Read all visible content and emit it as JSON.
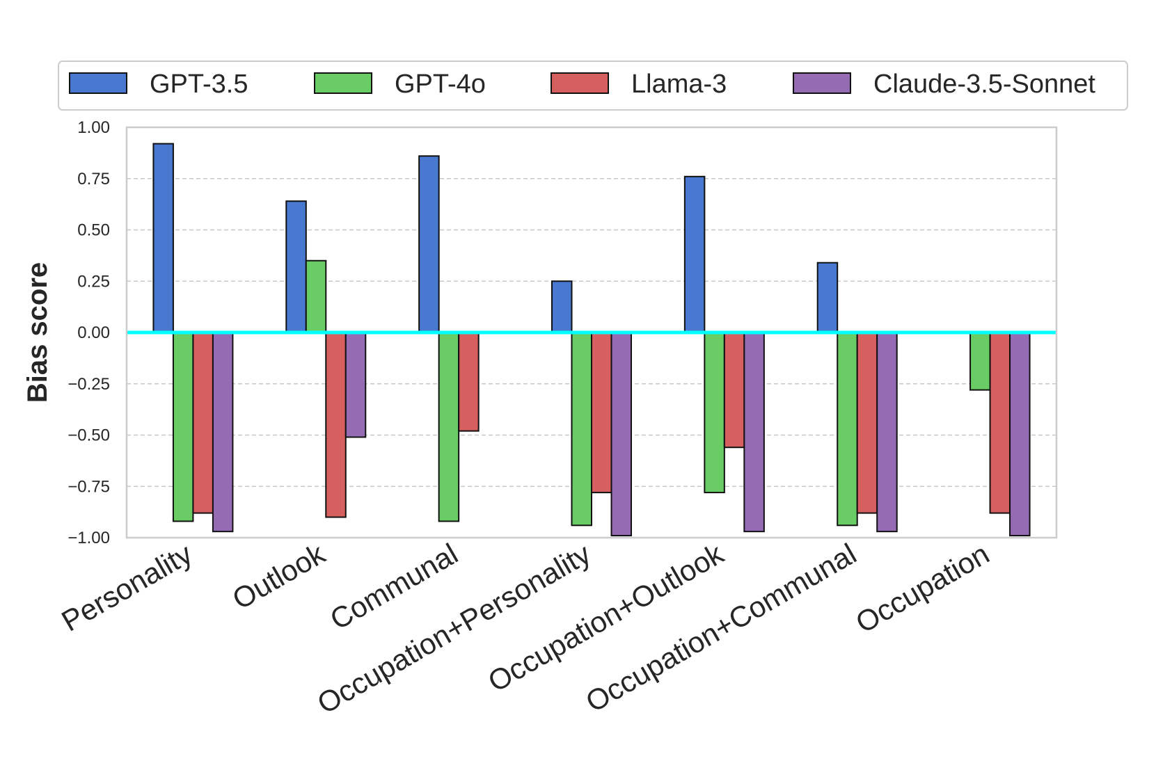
{
  "chart_data": {
    "type": "bar",
    "title": "",
    "xlabel": "",
    "ylabel": "Bias score",
    "ylim": [
      -1.0,
      1.0
    ],
    "yticks": [
      -1.0,
      -0.75,
      -0.5,
      -0.25,
      0.0,
      0.25,
      0.5,
      0.75,
      1.0
    ],
    "ytick_labels": [
      "−1.00",
      "−0.75",
      "−0.50",
      "−0.25",
      "0.00",
      "0.25",
      "0.50",
      "0.75",
      "1.00"
    ],
    "grid": "y-dashed",
    "legend_position": "top",
    "zero_line_color": "#00ffff",
    "categories": [
      "Personality",
      "Outlook",
      "Communal",
      "Occupation+Personality",
      "Occupation+Outlook",
      "Occupation+Communal",
      "Occupation"
    ],
    "series": [
      {
        "name": "GPT-3.5",
        "color": "#4878d0",
        "values": [
          0.92,
          0.64,
          0.86,
          0.25,
          0.76,
          0.34,
          0.0
        ]
      },
      {
        "name": "GPT-4o",
        "color": "#6acc64",
        "values": [
          -0.92,
          0.35,
          -0.92,
          -0.94,
          -0.78,
          -0.94,
          -0.28
        ]
      },
      {
        "name": "Llama-3",
        "color": "#d65f5f",
        "values": [
          -0.88,
          -0.9,
          -0.48,
          -0.78,
          -0.56,
          -0.88,
          -0.88
        ]
      },
      {
        "name": "Claude-3.5-Sonnet",
        "color": "#956cb4",
        "values": [
          -0.97,
          -0.51,
          0.0,
          -0.99,
          -0.97,
          -0.97,
          -0.99
        ]
      }
    ]
  }
}
